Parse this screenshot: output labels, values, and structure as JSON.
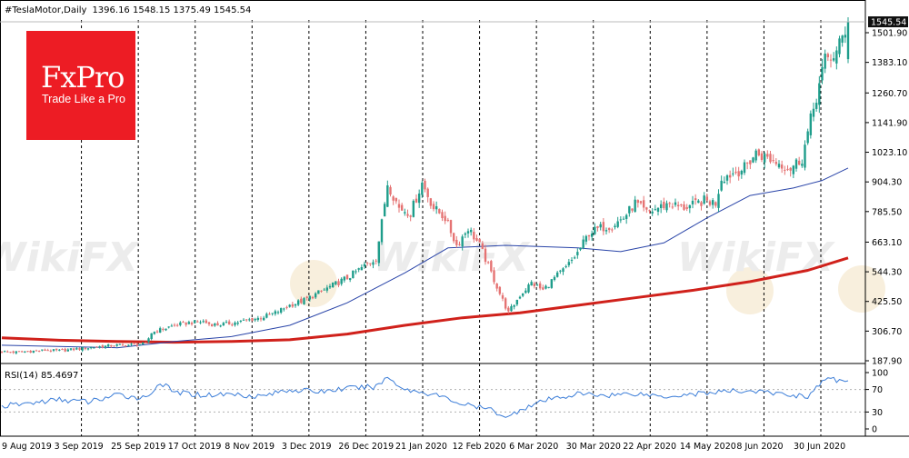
{
  "header": {
    "symbol": "#TeslaMotor,Daily",
    "ohlc": "1396.16 1548.15 1375.49 1545.54"
  },
  "logo": {
    "brand": "FxPro",
    "tagline": "Trade Like a Pro"
  },
  "watermark": "WikiFX",
  "colors": {
    "bull": "#1e9d8b",
    "bear": "#e57373",
    "ma_fast": "#2944a8",
    "ma_slow": "#d0211b",
    "rsi": "#3b7dd8",
    "price_tag": "#111111"
  },
  "chart_data": [
    {
      "type": "candlestick",
      "title": "#TeslaMotor,Daily",
      "last_price": "1545.54",
      "ylim": [
        170,
        1570
      ],
      "y_ticks": [
        "1501.90",
        "1383.10",
        "1260.70",
        "1141.90",
        "1023.10",
        "904.30",
        "785.50",
        "663.10",
        "544.30",
        "425.50",
        "306.70",
        "187.90"
      ],
      "x_ticks": [
        "9 Aug 2019",
        "3 Sep 2019",
        "25 Sep 2019",
        "17 Oct 2019",
        "8 Nov 2019",
        "3 Dec 2019",
        "26 Dec 2019",
        "21 Jan 2020",
        "12 Feb 2020",
        "6 Mar 2020",
        "30 Mar 2020",
        "22 Apr 2020",
        "14 May 2020",
        "8 Jun 2020",
        "30 Jun 2020"
      ],
      "close_path": [
        [
          0,
          225
        ],
        [
          5,
          222
        ],
        [
          10,
          226
        ],
        [
          15,
          230
        ],
        [
          20,
          228
        ],
        [
          25,
          234
        ],
        [
          30,
          240
        ],
        [
          35,
          246
        ],
        [
          40,
          250
        ],
        [
          45,
          252
        ],
        [
          50,
          256
        ],
        [
          52,
          300
        ],
        [
          55,
          312
        ],
        [
          60,
          330
        ],
        [
          65,
          340
        ],
        [
          70,
          345
        ],
        [
          72,
          335
        ],
        [
          75,
          332
        ],
        [
          80,
          338
        ],
        [
          85,
          350
        ],
        [
          90,
          360
        ],
        [
          95,
          380
        ],
        [
          100,
          410
        ],
        [
          105,
          430
        ],
        [
          110,
          460
        ],
        [
          115,
          490
        ],
        [
          120,
          520
        ],
        [
          125,
          560
        ],
        [
          130,
          600
        ],
        [
          132,
          740
        ],
        [
          134,
          900
        ],
        [
          138,
          800
        ],
        [
          142,
          780
        ],
        [
          146,
          900
        ],
        [
          150,
          800
        ],
        [
          154,
          760
        ],
        [
          158,
          650
        ],
        [
          162,
          720
        ],
        [
          166,
          650
        ],
        [
          170,
          540
        ],
        [
          174,
          430
        ],
        [
          176,
          380
        ],
        [
          180,
          450
        ],
        [
          184,
          500
        ],
        [
          188,
          470
        ],
        [
          192,
          520
        ],
        [
          196,
          560
        ],
        [
          200,
          620
        ],
        [
          204,
          700
        ],
        [
          208,
          720
        ],
        [
          212,
          730
        ],
        [
          216,
          760
        ],
        [
          220,
          820
        ],
        [
          224,
          780
        ],
        [
          228,
          800
        ],
        [
          232,
          820
        ],
        [
          236,
          800
        ],
        [
          240,
          810
        ],
        [
          244,
          830
        ],
        [
          248,
          820
        ],
        [
          250,
          920
        ],
        [
          254,
          940
        ],
        [
          258,
          960
        ],
        [
          262,
          1020
        ],
        [
          266,
          1000
        ],
        [
          270,
          980
        ],
        [
          274,
          960
        ],
        [
          278,
          1000
        ],
        [
          282,
          1200
        ],
        [
          286,
          1390
        ],
        [
          290,
          1420
        ],
        [
          294,
          1545.54
        ]
      ],
      "series": [
        {
          "kind": "moving-average-fast",
          "points": [
            [
              0,
              250
            ],
            [
              40,
              240
            ],
            [
              60,
              265
            ],
            [
              80,
              285
            ],
            [
              100,
              330
            ],
            [
              120,
              420
            ],
            [
              140,
              540
            ],
            [
              155,
              640
            ],
            [
              175,
              650
            ],
            [
              200,
              640
            ],
            [
              215,
              625
            ],
            [
              230,
              660
            ],
            [
              245,
              760
            ],
            [
              260,
              850
            ],
            [
              275,
              880
            ],
            [
              285,
              910
            ],
            [
              294,
              960
            ]
          ]
        },
        {
          "kind": "moving-average-slow",
          "points": [
            [
              0,
              280
            ],
            [
              20,
              270
            ],
            [
              40,
              265
            ],
            [
              60,
              262
            ],
            [
              80,
              265
            ],
            [
              100,
              272
            ],
            [
              120,
              295
            ],
            [
              140,
              330
            ],
            [
              160,
              360
            ],
            [
              180,
              380
            ],
            [
              200,
              410
            ],
            [
              220,
              440
            ],
            [
              240,
              470
            ],
            [
              260,
              505
            ],
            [
              280,
              550
            ],
            [
              294,
              600
            ]
          ]
        }
      ]
    },
    {
      "type": "line",
      "title": "RSI(14) 85.4697",
      "ylim": [
        0,
        100
      ],
      "y_ticks": [
        "100",
        "70",
        "30",
        "0"
      ],
      "levels": [
        70,
        30
      ],
      "x": [
        0,
        10,
        20,
        30,
        40,
        50,
        55,
        60,
        70,
        80,
        90,
        100,
        110,
        120,
        130,
        134,
        140,
        150,
        160,
        170,
        176,
        180,
        190,
        200,
        210,
        220,
        230,
        240,
        250,
        260,
        270,
        280,
        286,
        294
      ],
      "values": [
        40,
        46,
        52,
        48,
        60,
        55,
        82,
        65,
        60,
        62,
        58,
        70,
        66,
        72,
        75,
        92,
        70,
        62,
        44,
        34,
        20,
        35,
        52,
        62,
        60,
        63,
        58,
        62,
        66,
        68,
        62,
        58,
        88,
        85.4697
      ]
    }
  ]
}
